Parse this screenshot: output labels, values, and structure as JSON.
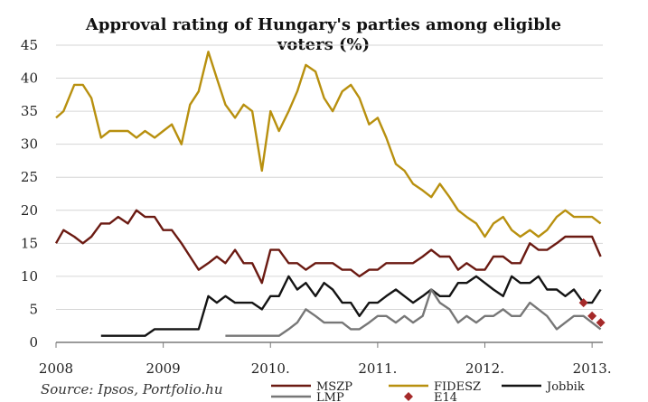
{
  "chart_data": {
    "type": "line",
    "title_lines": [
      "Approval rating of Hungary's parties among eligible",
      "voters (%)"
    ],
    "source": "Source: Ipsos, Portfolio.hu",
    "y_ticks": [
      0,
      5,
      10,
      15,
      20,
      25,
      30,
      35,
      40,
      45
    ],
    "ylim": [
      0,
      45
    ],
    "xlim": [
      2008.0,
      2013.1
    ],
    "x_ticks": [
      {
        "value": 2008.0,
        "label": "2008"
      },
      {
        "value": 2009.0,
        "label": "2009"
      },
      {
        "value": 2010.0,
        "label": "2010."
      },
      {
        "value": 2011.0,
        "label": "2011."
      },
      {
        "value": 2012.0,
        "label": "2012."
      },
      {
        "value": 2013.0,
        "label": "2013."
      }
    ],
    "grid": "horizontal",
    "legend_position": "bottom",
    "series": [
      {
        "name": "FIDESZ",
        "color": "#b8900f",
        "style": "line",
        "points": [
          [
            2008.0,
            34
          ],
          [
            2008.07,
            35
          ],
          [
            2008.17,
            39
          ],
          [
            2008.25,
            39
          ],
          [
            2008.33,
            37
          ],
          [
            2008.42,
            31
          ],
          [
            2008.5,
            32
          ],
          [
            2008.58,
            32
          ],
          [
            2008.67,
            32
          ],
          [
            2008.75,
            31
          ],
          [
            2008.83,
            32
          ],
          [
            2008.92,
            31
          ],
          [
            2009.0,
            32
          ],
          [
            2009.08,
            33
          ],
          [
            2009.17,
            30
          ],
          [
            2009.25,
            36
          ],
          [
            2009.33,
            38
          ],
          [
            2009.42,
            44
          ],
          [
            2009.5,
            40
          ],
          [
            2009.58,
            36
          ],
          [
            2009.67,
            34
          ],
          [
            2009.75,
            36
          ],
          [
            2009.83,
            35
          ],
          [
            2009.92,
            26
          ],
          [
            2010.0,
            35
          ],
          [
            2010.08,
            32
          ],
          [
            2010.17,
            35
          ],
          [
            2010.25,
            38
          ],
          [
            2010.33,
            42
          ],
          [
            2010.42,
            41
          ],
          [
            2010.5,
            37
          ],
          [
            2010.58,
            35
          ],
          [
            2010.67,
            38
          ],
          [
            2010.75,
            39
          ],
          [
            2010.83,
            37
          ],
          [
            2010.92,
            33
          ],
          [
            2011.0,
            34
          ],
          [
            2011.08,
            31
          ],
          [
            2011.17,
            27
          ],
          [
            2011.25,
            26
          ],
          [
            2011.33,
            24
          ],
          [
            2011.42,
            23
          ],
          [
            2011.5,
            22
          ],
          [
            2011.58,
            24
          ],
          [
            2011.67,
            22
          ],
          [
            2011.75,
            20
          ],
          [
            2011.83,
            19
          ],
          [
            2011.92,
            18
          ],
          [
            2012.0,
            16
          ],
          [
            2012.08,
            18
          ],
          [
            2012.17,
            19
          ],
          [
            2012.25,
            17
          ],
          [
            2012.33,
            16
          ],
          [
            2012.42,
            17
          ],
          [
            2012.5,
            16
          ],
          [
            2012.58,
            17
          ],
          [
            2012.67,
            19
          ],
          [
            2012.75,
            20
          ],
          [
            2012.83,
            19
          ],
          [
            2012.92,
            19
          ],
          [
            2013.0,
            19
          ],
          [
            2013.08,
            18
          ]
        ]
      },
      {
        "name": "MSZP",
        "color": "#6b1a12",
        "style": "line",
        "points": [
          [
            2008.0,
            15
          ],
          [
            2008.07,
            17
          ],
          [
            2008.17,
            16
          ],
          [
            2008.25,
            15
          ],
          [
            2008.33,
            16
          ],
          [
            2008.42,
            18
          ],
          [
            2008.5,
            18
          ],
          [
            2008.58,
            19
          ],
          [
            2008.67,
            18
          ],
          [
            2008.75,
            20
          ],
          [
            2008.83,
            19
          ],
          [
            2008.92,
            19
          ],
          [
            2009.0,
            17
          ],
          [
            2009.08,
            17
          ],
          [
            2009.17,
            15
          ],
          [
            2009.25,
            13
          ],
          [
            2009.33,
            11
          ],
          [
            2009.42,
            12
          ],
          [
            2009.5,
            13
          ],
          [
            2009.58,
            12
          ],
          [
            2009.67,
            14
          ],
          [
            2009.75,
            12
          ],
          [
            2009.83,
            12
          ],
          [
            2009.92,
            9
          ],
          [
            2010.0,
            14
          ],
          [
            2010.08,
            14
          ],
          [
            2010.17,
            12
          ],
          [
            2010.25,
            12
          ],
          [
            2010.33,
            11
          ],
          [
            2010.42,
            12
          ],
          [
            2010.5,
            12
          ],
          [
            2010.58,
            12
          ],
          [
            2010.67,
            11
          ],
          [
            2010.75,
            11
          ],
          [
            2010.83,
            10
          ],
          [
            2010.92,
            11
          ],
          [
            2011.0,
            11
          ],
          [
            2011.08,
            12
          ],
          [
            2011.17,
            12
          ],
          [
            2011.25,
            12
          ],
          [
            2011.33,
            12
          ],
          [
            2011.42,
            13
          ],
          [
            2011.5,
            14
          ],
          [
            2011.58,
            13
          ],
          [
            2011.67,
            13
          ],
          [
            2011.75,
            11
          ],
          [
            2011.83,
            12
          ],
          [
            2011.92,
            11
          ],
          [
            2012.0,
            11
          ],
          [
            2012.08,
            13
          ],
          [
            2012.17,
            13
          ],
          [
            2012.25,
            12
          ],
          [
            2012.33,
            12
          ],
          [
            2012.42,
            15
          ],
          [
            2012.5,
            14
          ],
          [
            2012.58,
            14
          ],
          [
            2012.67,
            15
          ],
          [
            2012.75,
            16
          ],
          [
            2012.83,
            16
          ],
          [
            2012.92,
            16
          ],
          [
            2013.0,
            16
          ],
          [
            2013.08,
            13
          ]
        ]
      },
      {
        "name": "Jobbik",
        "color": "#141414",
        "style": "line",
        "points": [
          [
            2008.42,
            1
          ],
          [
            2008.83,
            1
          ],
          [
            2008.92,
            2
          ],
          [
            2009.33,
            2
          ],
          [
            2009.42,
            7
          ],
          [
            2009.5,
            6
          ],
          [
            2009.58,
            7
          ],
          [
            2009.67,
            6
          ],
          [
            2009.75,
            6
          ],
          [
            2009.83,
            6
          ],
          [
            2009.92,
            5
          ],
          [
            2010.0,
            7
          ],
          [
            2010.08,
            7
          ],
          [
            2010.17,
            10
          ],
          [
            2010.25,
            8
          ],
          [
            2010.33,
            9
          ],
          [
            2010.42,
            7
          ],
          [
            2010.5,
            9
          ],
          [
            2010.58,
            8
          ],
          [
            2010.67,
            6
          ],
          [
            2010.75,
            6
          ],
          [
            2010.83,
            4
          ],
          [
            2010.92,
            6
          ],
          [
            2011.0,
            6
          ],
          [
            2011.08,
            7
          ],
          [
            2011.17,
            8
          ],
          [
            2011.25,
            7
          ],
          [
            2011.33,
            6
          ],
          [
            2011.42,
            7
          ],
          [
            2011.5,
            8
          ],
          [
            2011.58,
            7
          ],
          [
            2011.67,
            7
          ],
          [
            2011.75,
            9
          ],
          [
            2011.83,
            9
          ],
          [
            2011.92,
            10
          ],
          [
            2012.0,
            9
          ],
          [
            2012.08,
            8
          ],
          [
            2012.17,
            7
          ],
          [
            2012.25,
            10
          ],
          [
            2012.33,
            9
          ],
          [
            2012.42,
            9
          ],
          [
            2012.5,
            10
          ],
          [
            2012.58,
            8
          ],
          [
            2012.67,
            8
          ],
          [
            2012.75,
            7
          ],
          [
            2012.83,
            8
          ],
          [
            2012.92,
            6
          ],
          [
            2013.0,
            6
          ],
          [
            2013.08,
            8
          ]
        ]
      },
      {
        "name": "LMP",
        "color": "#777777",
        "style": "line",
        "points": [
          [
            2009.58,
            1
          ],
          [
            2010.0,
            1
          ],
          [
            2010.08,
            1
          ],
          [
            2010.17,
            2
          ],
          [
            2010.25,
            3
          ],
          [
            2010.33,
            5
          ],
          [
            2010.42,
            4
          ],
          [
            2010.5,
            3
          ],
          [
            2010.58,
            3
          ],
          [
            2010.67,
            3
          ],
          [
            2010.75,
            2
          ],
          [
            2010.83,
            2
          ],
          [
            2010.92,
            3
          ],
          [
            2011.0,
            4
          ],
          [
            2011.08,
            4
          ],
          [
            2011.17,
            3
          ],
          [
            2011.25,
            4
          ],
          [
            2011.33,
            3
          ],
          [
            2011.42,
            4
          ],
          [
            2011.5,
            8
          ],
          [
            2011.58,
            6
          ],
          [
            2011.67,
            5
          ],
          [
            2011.75,
            3
          ],
          [
            2011.83,
            4
          ],
          [
            2011.92,
            3
          ],
          [
            2012.0,
            4
          ],
          [
            2012.08,
            4
          ],
          [
            2012.17,
            5
          ],
          [
            2012.25,
            4
          ],
          [
            2012.33,
            4
          ],
          [
            2012.42,
            6
          ],
          [
            2012.5,
            5
          ],
          [
            2012.58,
            4
          ],
          [
            2012.67,
            2
          ],
          [
            2012.75,
            3
          ],
          [
            2012.83,
            4
          ],
          [
            2012.92,
            4
          ],
          [
            2013.0,
            3
          ],
          [
            2013.08,
            2
          ]
        ]
      },
      {
        "name": "E14",
        "color": "#a52a2a",
        "style": "marker",
        "points": [
          [
            2012.92,
            6
          ],
          [
            2013.0,
            4
          ],
          [
            2013.08,
            3
          ]
        ]
      }
    ],
    "legend_layout": [
      [
        "MSZP",
        "FIDESZ",
        "Jobbik"
      ],
      [
        "LMP",
        "E14"
      ]
    ]
  }
}
